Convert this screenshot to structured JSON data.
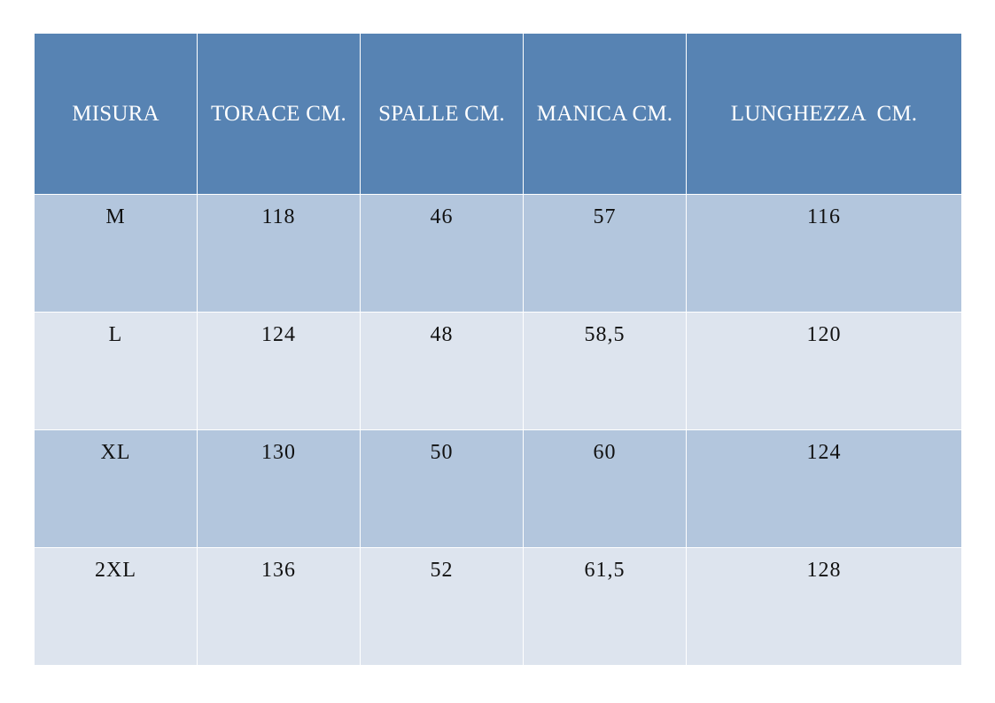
{
  "table": {
    "headers": [
      "MISURA",
      "TORACE CM.",
      "SPALLE CM.",
      "MANICA CM.",
      "LUNGHEZZA  CM."
    ],
    "rows": [
      [
        "M",
        "118",
        "46",
        "57",
        "116"
      ],
      [
        "L",
        "124",
        "48",
        "58,5",
        "120"
      ],
      [
        "XL",
        "130",
        "50",
        "60",
        "124"
      ],
      [
        "2XL",
        "136",
        "52",
        "61,5",
        "128"
      ]
    ]
  },
  "colors": {
    "header_bg": "#5783b3",
    "row_dark_bg": "#b3c6dd",
    "row_light_bg": "#dde4ee",
    "header_text": "#ffffff",
    "body_text": "#111111"
  }
}
